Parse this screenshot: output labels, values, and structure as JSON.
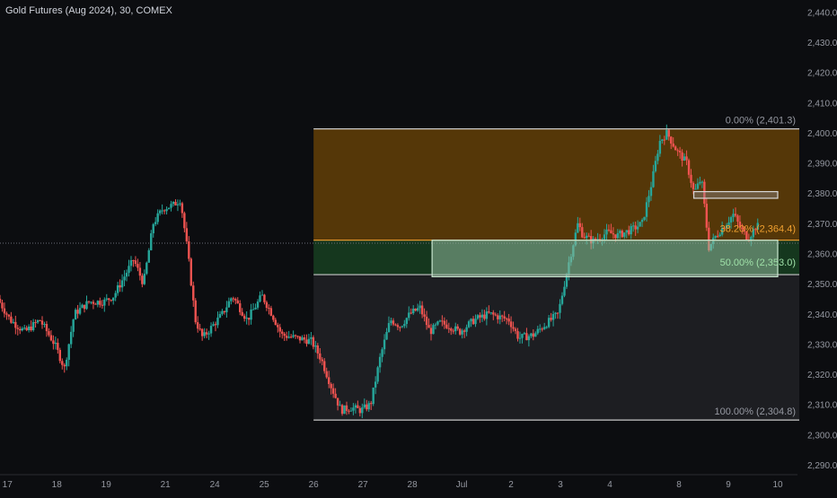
{
  "header": {
    "symbol_title": "Gold Futures (Aug 2024), 30, COMEX"
  },
  "colors": {
    "background": "#0c0d10",
    "up_candle": "#26a69a",
    "down_candle": "#ef5350",
    "zone_top": "#5a3a08",
    "zone_mid": "#163a20",
    "zone_bottom": "#1f2024",
    "fib_line": "#c8c8c8",
    "fib_382_line": "#f0a030",
    "highlight_box": "#8fb89a",
    "axis_text": "#9598a1"
  },
  "chart_data": {
    "type": "candlestick",
    "y_axis": {
      "ticks": [
        "2,440.0",
        "2,430.0",
        "2,420.0",
        "2,410.0",
        "2,400.0",
        "2,390.0",
        "2,380.0",
        "2,370.0",
        "2,360.0",
        "2,350.0",
        "2,340.0",
        "2,330.0",
        "2,320.0",
        "2,310.0",
        "2,300.0",
        "2,290.0"
      ],
      "tick_values": [
        2440,
        2430,
        2420,
        2410,
        2400,
        2390,
        2380,
        2370,
        2360,
        2350,
        2340,
        2330,
        2320,
        2310,
        2300,
        2290
      ],
      "range": [
        2287,
        2444
      ]
    },
    "x_axis": {
      "labels": [
        "17",
        "18",
        "19",
        "21",
        "24",
        "25",
        "26",
        "27",
        "28",
        "Jul",
        "2",
        "3",
        "4",
        "8",
        "9",
        "10"
      ],
      "positions": [
        0.6,
        1.6,
        2.6,
        3.8,
        4.8,
        5.8,
        6.8,
        7.8,
        8.8,
        9.8,
        10.8,
        11.8,
        12.8,
        14.2,
        15.2,
        16.2
      ],
      "range": [
        0.45,
        16.6
      ]
    },
    "fibonacci": [
      {
        "level": "0.00%",
        "price": 2401.3,
        "label": "0.00% (2,401.3)"
      },
      {
        "level": "38.20%",
        "price": 2364.4,
        "label": "38.20% (2,364.4)"
      },
      {
        "level": "50.00%",
        "price": 2353.0,
        "label": "50.00% (2,353.0)"
      },
      {
        "level": "100.00%",
        "price": 2304.8,
        "label": "100.00% (2,304.8)"
      }
    ],
    "fib_x_start": 6.8,
    "highlight_box": {
      "x_start": 9.2,
      "x_end": 16.2,
      "y_top": 2364.4,
      "y_bottom": 2352.3
    },
    "small_box": {
      "x_start": 14.5,
      "x_end": 16.2,
      "y_top": 2380.5,
      "y_bottom": 2378.3
    },
    "dotted_price": 2363.4,
    "price_path": [
      [
        0.45,
        2345
      ],
      [
        0.7,
        2338
      ],
      [
        1.0,
        2334
      ],
      [
        1.3,
        2338
      ],
      [
        1.6,
        2330
      ],
      [
        1.8,
        2322
      ],
      [
        2.0,
        2340
      ],
      [
        2.3,
        2344
      ],
      [
        2.6,
        2344
      ],
      [
        2.8,
        2346
      ],
      [
        3.0,
        2352
      ],
      [
        3.2,
        2358
      ],
      [
        3.4,
        2350
      ],
      [
        3.6,
        2370
      ],
      [
        3.8,
        2375
      ],
      [
        4.0,
        2376
      ],
      [
        4.15,
        2378
      ],
      [
        4.3,
        2360
      ],
      [
        4.45,
        2338
      ],
      [
        4.6,
        2332
      ],
      [
        4.8,
        2336
      ],
      [
        5.0,
        2340
      ],
      [
        5.2,
        2346
      ],
      [
        5.5,
        2338
      ],
      [
        5.8,
        2346
      ],
      [
        6.0,
        2340
      ],
      [
        6.2,
        2333
      ],
      [
        6.5,
        2332
      ],
      [
        6.8,
        2331
      ],
      [
        7.0,
        2325
      ],
      [
        7.2,
        2316
      ],
      [
        7.4,
        2308
      ],
      [
        7.6,
        2309
      ],
      [
        7.8,
        2308
      ],
      [
        8.0,
        2310
      ],
      [
        8.2,
        2326
      ],
      [
        8.4,
        2338
      ],
      [
        8.6,
        2336
      ],
      [
        8.8,
        2340
      ],
      [
        9.0,
        2342
      ],
      [
        9.2,
        2334
      ],
      [
        9.4,
        2337
      ],
      [
        9.6,
        2336
      ],
      [
        9.8,
        2334
      ],
      [
        10.1,
        2338
      ],
      [
        10.4,
        2340
      ],
      [
        10.8,
        2338
      ],
      [
        11.0,
        2332
      ],
      [
        11.3,
        2333
      ],
      [
        11.5,
        2336
      ],
      [
        11.8,
        2340
      ],
      [
        12.0,
        2356
      ],
      [
        12.2,
        2370
      ],
      [
        12.3,
        2366
      ],
      [
        12.5,
        2364
      ],
      [
        12.8,
        2367
      ],
      [
        13.0,
        2366
      ],
      [
        13.3,
        2368
      ],
      [
        13.5,
        2370
      ],
      [
        13.7,
        2384
      ],
      [
        13.85,
        2397
      ],
      [
        14.0,
        2400
      ],
      [
        14.2,
        2394
      ],
      [
        14.4,
        2390
      ],
      [
        14.55,
        2380
      ],
      [
        14.7,
        2385
      ],
      [
        14.85,
        2362
      ],
      [
        15.0,
        2366
      ],
      [
        15.2,
        2370
      ],
      [
        15.35,
        2373
      ],
      [
        15.5,
        2368
      ],
      [
        15.65,
        2365
      ],
      [
        15.8,
        2369
      ]
    ]
  }
}
